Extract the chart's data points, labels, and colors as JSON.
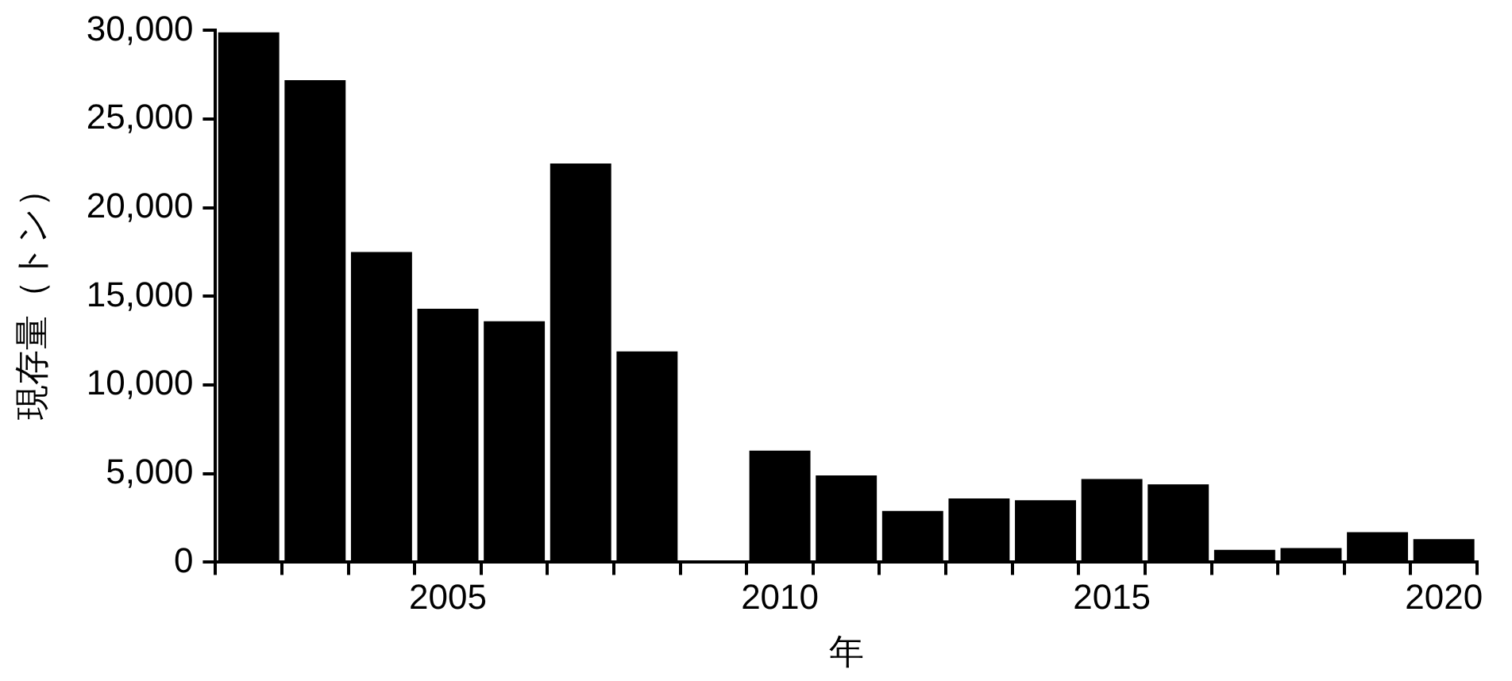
{
  "chart_data": {
    "type": "bar",
    "xlabel": "年",
    "ylabel": "現存量（トン）",
    "categories": [
      null,
      null,
      null,
      "2005",
      null,
      null,
      null,
      null,
      "2010",
      null,
      null,
      null,
      null,
      "2015",
      null,
      null,
      null,
      null,
      "2020"
    ],
    "values": [
      29900,
      27200,
      17500,
      14300,
      13600,
      22500,
      11900,
      0,
      6300,
      4900,
      2900,
      3600,
      3500,
      4700,
      4400,
      700,
      800,
      1700,
      1300
    ],
    "color": "#000000",
    "ylim": [
      0,
      30000
    ],
    "yticks": [
      {
        "value": 0,
        "label": "0"
      },
      {
        "value": 5000,
        "label": "5,000"
      },
      {
        "value": 10000,
        "label": "10,000"
      },
      {
        "value": 15000,
        "label": "15,000"
      },
      {
        "value": 20000,
        "label": "20,000"
      },
      {
        "value": 25000,
        "label": "25,000"
      },
      {
        "value": 30000,
        "label": "30,000"
      }
    ],
    "grid": false,
    "legend": false
  }
}
